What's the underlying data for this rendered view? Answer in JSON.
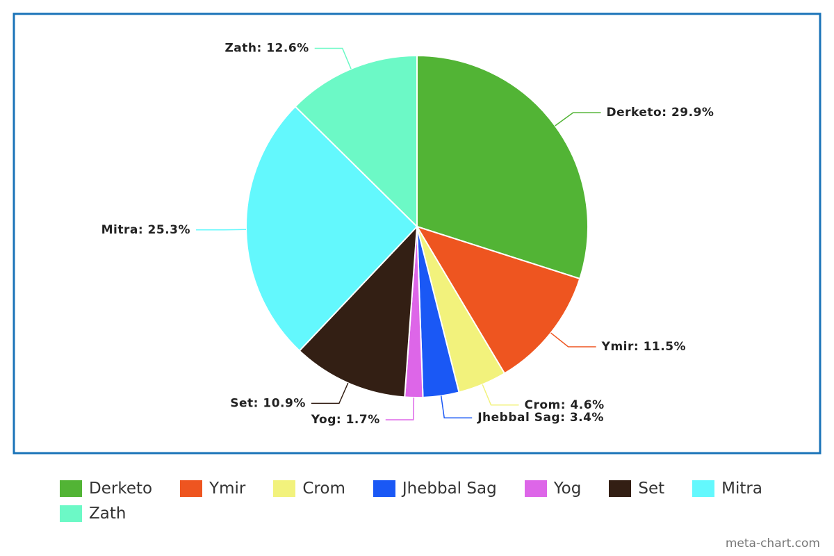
{
  "chart_data": {
    "type": "pie",
    "categories": [
      "Derketo",
      "Ymir",
      "Crom",
      "Jhebbal Sag",
      "Yog",
      "Set",
      "Mitra",
      "Zath"
    ],
    "values": [
      29.9,
      11.5,
      4.6,
      3.4,
      1.7,
      10.9,
      25.3,
      12.6
    ],
    "value_labels": [
      "Derketo: 29.9%",
      "Ymir: 11.5%",
      "Crom: 4.6%",
      "Jhebbal Sag: 3.4%",
      "Yog: 1.7%",
      "Set: 10.9%",
      "Mitra: 25.3%",
      "Zath: 12.6%"
    ],
    "colors": [
      "#52b435",
      "#ee5520",
      "#f2f27c",
      "#1a58f5",
      "#dd66e8",
      "#331f14",
      "#63f8fd",
      "#6cf9c6"
    ],
    "legend": "bottom",
    "watermark": "meta-chart.com"
  }
}
